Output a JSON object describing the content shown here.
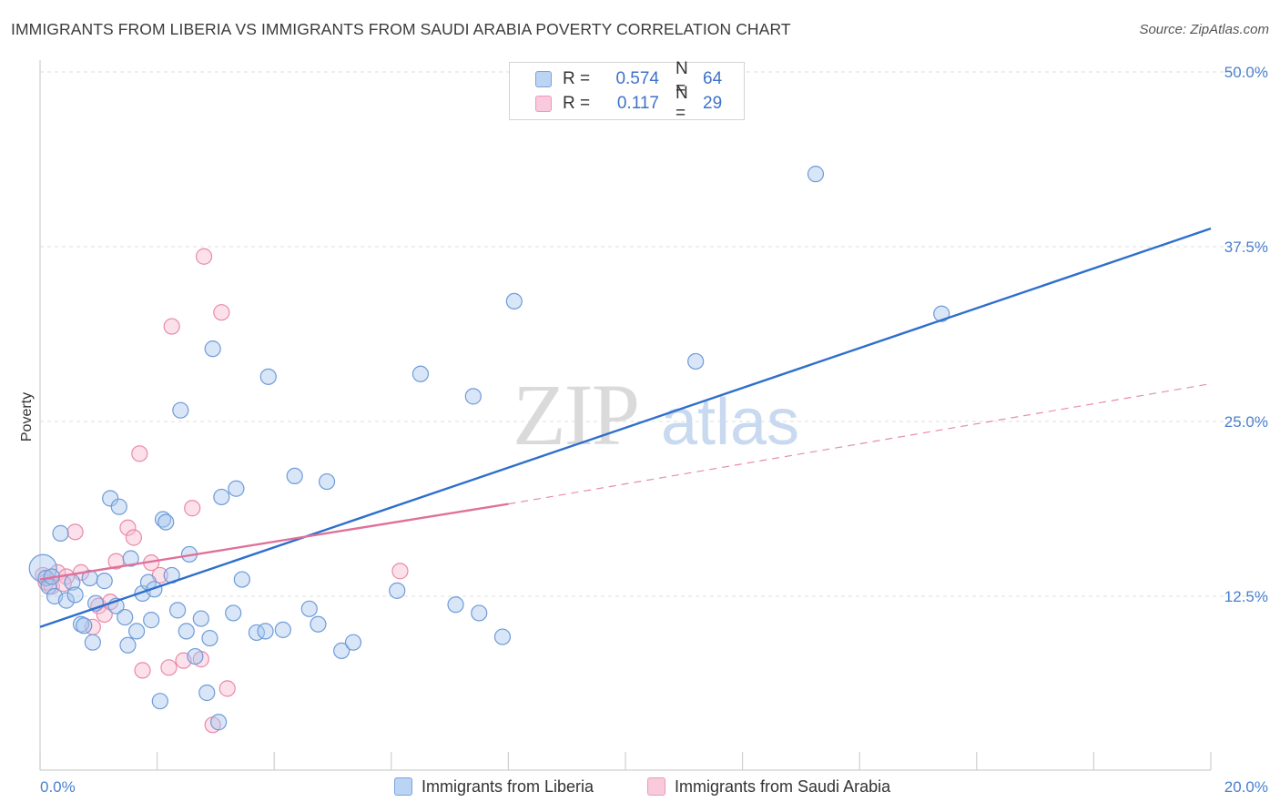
{
  "title": "IMMIGRANTS FROM LIBERIA VS IMMIGRANTS FROM SAUDI ARABIA POVERTY CORRELATION CHART",
  "source": "Source: ZipAtlas.com",
  "watermark": {
    "zip": "ZIP",
    "atlas": "atlas"
  },
  "legend": {
    "rows": [
      {
        "r_label": "R =",
        "r_value": "0.574",
        "n_label": "N =",
        "n_value": "64"
      },
      {
        "r_label": "R =",
        "r_value": "0.117",
        "n_label": "N =",
        "n_value": "29"
      }
    ]
  },
  "bottom_legend": {
    "liberia": "Immigrants from Liberia",
    "saudi": "Immigrants from Saudi Arabia"
  },
  "colors": {
    "liberia_fill": "#a8c8f0",
    "liberia_stroke": "#6f9bd8",
    "liberia_line": "#2f6fcc",
    "saudi_fill": "#f8bcd0",
    "saudi_stroke": "#e88aa8",
    "saudi_line": "#e0709a",
    "tick_text": "#4a7fd0",
    "grid": "#dcdcdc"
  },
  "chart_data": {
    "type": "scatter",
    "title": "IMMIGRANTS FROM LIBERIA VS IMMIGRANTS FROM SAUDI ARABIA POVERTY CORRELATION CHART",
    "xlabel": "",
    "ylabel": "Poverty",
    "xlim": [
      0,
      20
    ],
    "ylim": [
      0,
      50
    ],
    "x_tick_labels": [
      "0.0%",
      "20.0%"
    ],
    "y_ticks": [
      12.5,
      25.0,
      37.5,
      50.0
    ],
    "y_tick_labels": [
      "12.5%",
      "25.0%",
      "37.5%",
      "50.0%"
    ],
    "series": [
      {
        "name": "Immigrants from Liberia",
        "R": 0.574,
        "N": 64,
        "trendline": {
          "x": [
            0,
            20
          ],
          "y": [
            10.3,
            38.8
          ],
          "style": "solid"
        },
        "points": [
          [
            0.05,
            14.5
          ],
          [
            0.1,
            13.8
          ],
          [
            0.15,
            13.2
          ],
          [
            0.25,
            12.5
          ],
          [
            0.35,
            17.0
          ],
          [
            0.45,
            12.2
          ],
          [
            0.55,
            13.5
          ],
          [
            0.6,
            12.6
          ],
          [
            0.7,
            10.5
          ],
          [
            0.75,
            10.4
          ],
          [
            0.85,
            13.8
          ],
          [
            0.9,
            9.2
          ],
          [
            0.95,
            12.0
          ],
          [
            1.1,
            13.6
          ],
          [
            1.2,
            19.5
          ],
          [
            1.3,
            11.8
          ],
          [
            1.35,
            18.9
          ],
          [
            1.45,
            11.0
          ],
          [
            1.5,
            9.0
          ],
          [
            1.55,
            15.2
          ],
          [
            1.65,
            10.0
          ],
          [
            1.75,
            12.7
          ],
          [
            1.85,
            13.5
          ],
          [
            1.9,
            10.8
          ],
          [
            1.95,
            13.0
          ],
          [
            2.05,
            5.0
          ],
          [
            2.1,
            18.0
          ],
          [
            2.15,
            17.8
          ],
          [
            2.25,
            14.0
          ],
          [
            2.35,
            11.5
          ],
          [
            2.4,
            25.8
          ],
          [
            2.5,
            10.0
          ],
          [
            2.55,
            15.5
          ],
          [
            2.65,
            8.2
          ],
          [
            2.75,
            10.9
          ],
          [
            2.85,
            5.6
          ],
          [
            2.9,
            9.5
          ],
          [
            2.95,
            30.2
          ],
          [
            3.05,
            3.5
          ],
          [
            3.1,
            19.6
          ],
          [
            3.3,
            11.3
          ],
          [
            3.35,
            20.2
          ],
          [
            3.45,
            13.7
          ],
          [
            3.7,
            9.9
          ],
          [
            3.85,
            10.0
          ],
          [
            3.9,
            28.2
          ],
          [
            4.15,
            10.1
          ],
          [
            4.35,
            21.1
          ],
          [
            4.6,
            11.6
          ],
          [
            4.75,
            10.5
          ],
          [
            4.9,
            20.7
          ],
          [
            5.15,
            8.6
          ],
          [
            5.35,
            9.2
          ],
          [
            6.1,
            12.9
          ],
          [
            6.5,
            28.4
          ],
          [
            7.1,
            11.9
          ],
          [
            7.4,
            26.8
          ],
          [
            7.5,
            11.3
          ],
          [
            7.9,
            9.6
          ],
          [
            8.1,
            33.6
          ],
          [
            11.2,
            29.3
          ],
          [
            13.25,
            42.7
          ],
          [
            15.4,
            32.7
          ],
          [
            0.2,
            13.9
          ]
        ]
      },
      {
        "name": "Immigrants from Saudi Arabia",
        "R": 0.117,
        "N": 29,
        "trendline": {
          "x": [
            0,
            8.0,
            20
          ],
          "y": [
            13.7,
            19.1,
            27.7
          ],
          "solid_until_x": 8.0,
          "style": "solid-then-dashed"
        },
        "points": [
          [
            0.05,
            14.0
          ],
          [
            0.1,
            13.5
          ],
          [
            0.2,
            13.2
          ],
          [
            0.3,
            14.2
          ],
          [
            0.45,
            13.9
          ],
          [
            0.6,
            17.1
          ],
          [
            0.7,
            14.2
          ],
          [
            0.9,
            10.3
          ],
          [
            1.0,
            11.8
          ],
          [
            1.1,
            11.2
          ],
          [
            1.2,
            12.1
          ],
          [
            1.3,
            15.0
          ],
          [
            1.5,
            17.4
          ],
          [
            1.6,
            16.7
          ],
          [
            1.7,
            22.7
          ],
          [
            1.75,
            7.2
          ],
          [
            1.9,
            14.9
          ],
          [
            2.05,
            14.0
          ],
          [
            2.2,
            7.4
          ],
          [
            2.25,
            31.8
          ],
          [
            2.45,
            7.9
          ],
          [
            2.6,
            18.8
          ],
          [
            2.75,
            8.0
          ],
          [
            2.8,
            36.8
          ],
          [
            2.95,
            3.3
          ],
          [
            3.1,
            32.8
          ],
          [
            3.2,
            5.9
          ],
          [
            6.15,
            14.3
          ],
          [
            0.4,
            13.4
          ]
        ]
      }
    ]
  }
}
